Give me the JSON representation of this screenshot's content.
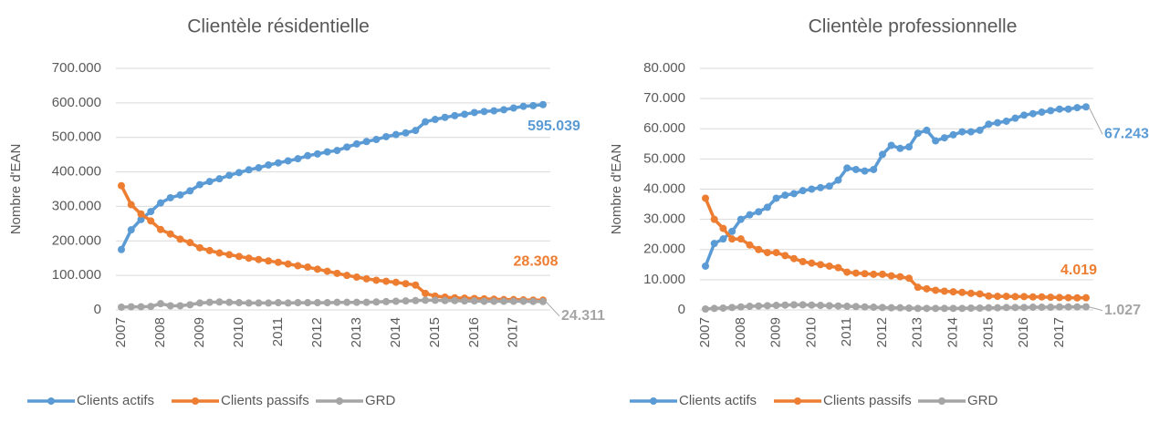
{
  "chart_data": [
    {
      "type": "line",
      "title": "Clientèle résidentielle",
      "y_label": "Nombre d'EAN",
      "categories": [
        "2007",
        null,
        null,
        null,
        "2008",
        null,
        null,
        null,
        "2009",
        null,
        null,
        null,
        "2010",
        null,
        null,
        null,
        "2011",
        null,
        null,
        null,
        "2012",
        null,
        null,
        null,
        "2013",
        null,
        null,
        null,
        "2014",
        null,
        null,
        null,
        "2015",
        null,
        null,
        null,
        "2016",
        null,
        null,
        null,
        "2017",
        null,
        null,
        null
      ],
      "ylim": [
        0,
        700000
      ],
      "yticks": [
        0,
        {
          "value": 100000,
          "label": "100.000"
        },
        {
          "value": 200000,
          "label": "200.000"
        },
        {
          "value": 300000,
          "label": "300.000"
        },
        {
          "value": 400000,
          "label": "400.000"
        },
        {
          "value": 500000,
          "label": "500.000"
        },
        {
          "value": 600000,
          "label": "600.000"
        },
        {
          "value": 700000,
          "label": "700.000"
        }
      ],
      "series": [
        {
          "name": "Clients actifs",
          "color": "#5b9bd5",
          "values": [
            175000,
            232000,
            262000,
            285000,
            310000,
            325000,
            333000,
            345000,
            363000,
            372000,
            380000,
            390000,
            398000,
            406000,
            412000,
            420000,
            426000,
            432000,
            438000,
            447000,
            452000,
            458000,
            462000,
            472000,
            481000,
            488000,
            494000,
            502000,
            508000,
            513000,
            520000,
            545000,
            552000,
            558000,
            563000,
            567000,
            572000,
            575000,
            577000,
            580000,
            585000,
            590000,
            592000,
            595039
          ],
          "value_labels": [
            null,
            null,
            null,
            null,
            null,
            null,
            null,
            null,
            null,
            null,
            null,
            null,
            null,
            null,
            null,
            null,
            null,
            null,
            null,
            null,
            null,
            null,
            null,
            null,
            null,
            null,
            null,
            null,
            null,
            null,
            null,
            null,
            null,
            null,
            null,
            null,
            null,
            null,
            null,
            null,
            null,
            null,
            null,
            "595.039"
          ]
        },
        {
          "name": "Clients passifs",
          "color": "#ed7d31",
          "values": [
            360000,
            305000,
            278000,
            258000,
            233000,
            220000,
            205000,
            195000,
            180000,
            172000,
            165000,
            160000,
            155000,
            150000,
            146000,
            142000,
            138000,
            133000,
            128000,
            124000,
            118000,
            112000,
            106000,
            100000,
            95000,
            90000,
            86000,
            83000,
            80000,
            76000,
            72000,
            48000,
            40000,
            37000,
            35000,
            34000,
            33000,
            32000,
            31000,
            30000,
            30000,
            29000,
            28500,
            28308
          ],
          "value_labels": [
            null,
            null,
            null,
            null,
            null,
            null,
            null,
            null,
            null,
            null,
            null,
            null,
            null,
            null,
            null,
            null,
            null,
            null,
            null,
            null,
            null,
            null,
            null,
            null,
            null,
            null,
            null,
            null,
            null,
            null,
            null,
            null,
            null,
            null,
            null,
            null,
            null,
            null,
            null,
            null,
            null,
            null,
            null,
            "28.308"
          ]
        },
        {
          "name": "GRD",
          "color": "#a5a5a5",
          "values": [
            8000,
            9000,
            9000,
            10000,
            18000,
            12000,
            12000,
            15000,
            20000,
            22000,
            23000,
            22000,
            21000,
            20000,
            20000,
            20000,
            21000,
            20000,
            21000,
            21000,
            21000,
            21000,
            22000,
            22000,
            22000,
            22000,
            23000,
            24000,
            25000,
            26000,
            27000,
            28000,
            28000,
            27000,
            27000,
            26000,
            26000,
            25000,
            25000,
            25000,
            25000,
            25000,
            24500,
            24311
          ],
          "value_labels": [
            null,
            null,
            null,
            null,
            null,
            null,
            null,
            null,
            null,
            null,
            null,
            null,
            null,
            null,
            null,
            null,
            null,
            null,
            null,
            null,
            null,
            null,
            null,
            null,
            null,
            null,
            null,
            null,
            null,
            null,
            null,
            null,
            null,
            null,
            null,
            null,
            null,
            null,
            null,
            null,
            null,
            null,
            null,
            "24.311"
          ]
        }
      ]
    },
    {
      "type": "line",
      "title": "Clientèle professionnelle",
      "y_label": "Nombre d'EAN",
      "categories": [
        "2007",
        null,
        null,
        null,
        "2008",
        null,
        null,
        null,
        "2009",
        null,
        null,
        null,
        "2010",
        null,
        null,
        null,
        "2011",
        null,
        null,
        null,
        "2012",
        null,
        null,
        null,
        "2013",
        null,
        null,
        null,
        "2014",
        null,
        null,
        null,
        "2015",
        null,
        null,
        null,
        "2016",
        null,
        null,
        null,
        "2017",
        null,
        null,
        null
      ],
      "ylim": [
        0,
        80000
      ],
      "yticks": [
        0,
        {
          "value": 10000,
          "label": "10.000"
        },
        {
          "value": 20000,
          "label": "20.000"
        },
        {
          "value": 30000,
          "label": "30.000"
        },
        {
          "value": 40000,
          "label": "40.000"
        },
        {
          "value": 50000,
          "label": "50.000"
        },
        {
          "value": 60000,
          "label": "60.000"
        },
        {
          "value": 70000,
          "label": "70.000"
        },
        {
          "value": 80000,
          "label": "80.000"
        }
      ],
      "series": [
        {
          "name": "Clients actifs",
          "color": "#5b9bd5",
          "values": [
            14500,
            22000,
            23500,
            26000,
            30000,
            31500,
            32500,
            34000,
            37000,
            38000,
            38500,
            39500,
            40000,
            40500,
            41000,
            43000,
            47000,
            46500,
            46000,
            46500,
            51500,
            54500,
            53500,
            54000,
            58500,
            59500,
            56000,
            57000,
            58000,
            59000,
            59000,
            59500,
            61500,
            62000,
            62500,
            63500,
            64500,
            65000,
            65500,
            66000,
            66500,
            66500,
            67000,
            67243
          ],
          "value_labels": [
            null,
            null,
            null,
            null,
            null,
            null,
            null,
            null,
            null,
            null,
            null,
            null,
            null,
            null,
            null,
            null,
            null,
            null,
            null,
            null,
            null,
            null,
            null,
            null,
            null,
            null,
            null,
            null,
            null,
            null,
            null,
            null,
            null,
            null,
            null,
            null,
            null,
            null,
            null,
            null,
            null,
            null,
            null,
            "67.243"
          ]
        },
        {
          "name": "Clients passifs",
          "color": "#ed7d31",
          "values": [
            37000,
            30000,
            27000,
            23500,
            23500,
            21500,
            20000,
            19000,
            19000,
            18000,
            17000,
            16000,
            15500,
            15000,
            14500,
            14000,
            12500,
            12200,
            12000,
            11800,
            11800,
            11300,
            11000,
            10500,
            7500,
            7000,
            6500,
            6200,
            6000,
            5800,
            5500,
            5300,
            4600,
            4500,
            4500,
            4400,
            4400,
            4300,
            4300,
            4200,
            4100,
            4050,
            4000,
            4019
          ],
          "value_labels": [
            null,
            null,
            null,
            null,
            null,
            null,
            null,
            null,
            null,
            null,
            null,
            null,
            null,
            null,
            null,
            null,
            null,
            null,
            null,
            null,
            null,
            null,
            null,
            null,
            null,
            null,
            null,
            null,
            null,
            null,
            null,
            null,
            null,
            null,
            null,
            null,
            null,
            null,
            null,
            null,
            null,
            null,
            null,
            "4.019"
          ]
        },
        {
          "name": "GRD",
          "color": "#a5a5a5",
          "values": [
            300,
            500,
            600,
            800,
            1000,
            1200,
            1300,
            1400,
            1500,
            1600,
            1700,
            1700,
            1600,
            1500,
            1400,
            1300,
            1200,
            1100,
            1000,
            900,
            800,
            700,
            700,
            600,
            500,
            500,
            500,
            500,
            500,
            500,
            600,
            600,
            700,
            700,
            800,
            800,
            800,
            900,
            900,
            900,
            1000,
            1000,
            1000,
            1027
          ],
          "value_labels": [
            null,
            null,
            null,
            null,
            null,
            null,
            null,
            null,
            null,
            null,
            null,
            null,
            null,
            null,
            null,
            null,
            null,
            null,
            null,
            null,
            null,
            null,
            null,
            null,
            null,
            null,
            null,
            null,
            null,
            null,
            null,
            null,
            null,
            null,
            null,
            null,
            null,
            null,
            null,
            null,
            null,
            null,
            null,
            "1.027"
          ]
        }
      ]
    }
  ]
}
